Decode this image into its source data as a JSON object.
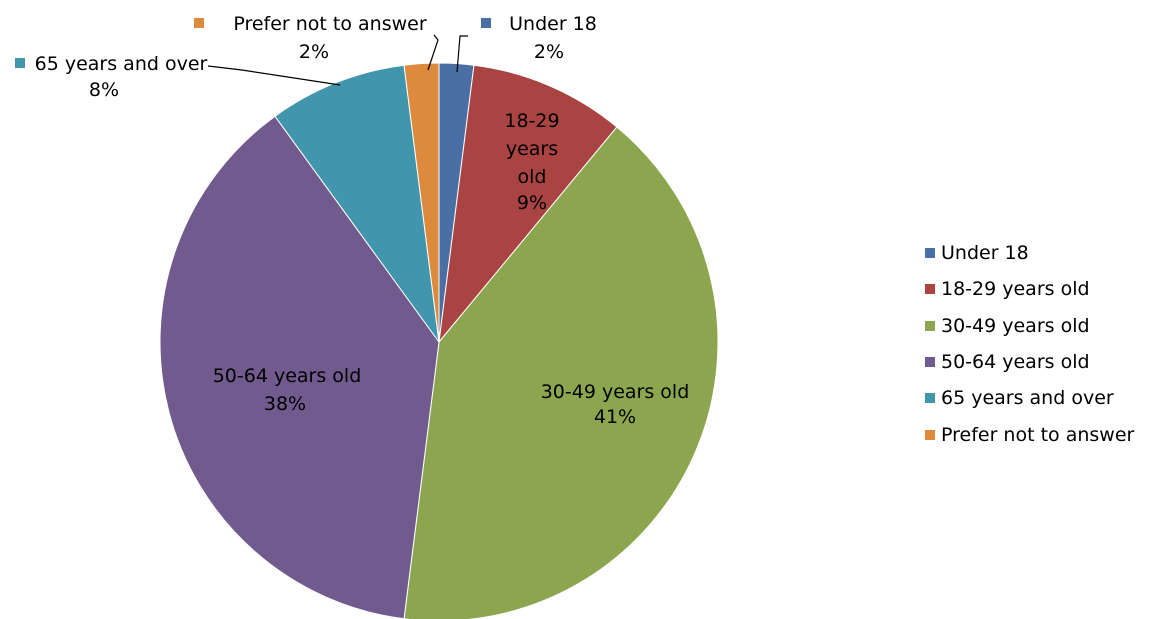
{
  "chart_data": {
    "type": "pie",
    "title": "",
    "legend_position": "right",
    "slices": [
      {
        "label": "Under 18",
        "value": 2,
        "display": "2%",
        "color": "#4a6fa5"
      },
      {
        "label": "18-29 years old",
        "value": 9,
        "display": "9%",
        "color": "#a94442"
      },
      {
        "label": "30-49 years old",
        "value": 41,
        "display": "41%",
        "color": "#8ca64f"
      },
      {
        "label": "50-64 years old",
        "value": 38,
        "display": "38%",
        "color": "#715a8e"
      },
      {
        "label": "65 years and over",
        "value": 8,
        "display": "8%",
        "color": "#4196ad"
      },
      {
        "label": "Prefer not to answer",
        "value": 2,
        "display": "2%",
        "color": "#dd8a3c"
      }
    ]
  }
}
